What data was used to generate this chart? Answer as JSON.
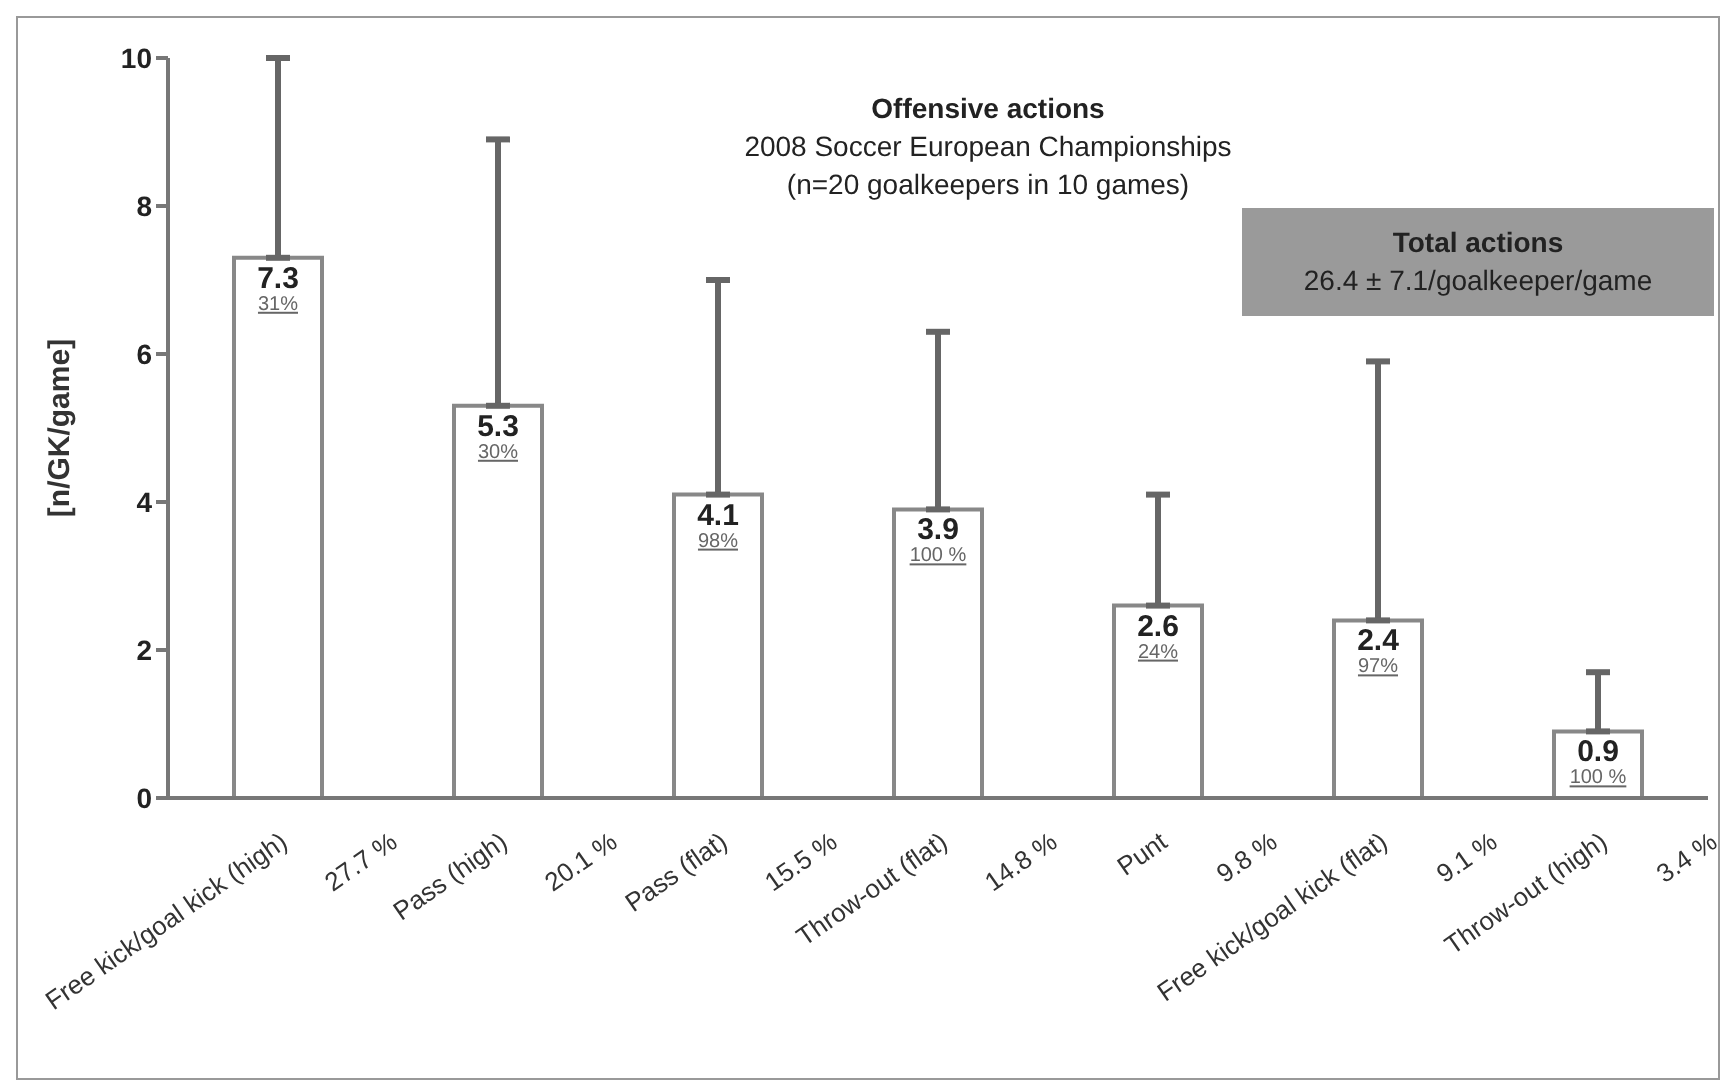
{
  "chart_data": {
    "type": "bar",
    "title": "Offensive actions",
    "subtitle": "2008 Soccer European Championships\n(n=20 goalkeepers in 10 games)",
    "ylabel": "[n/GK/game]",
    "categories": [
      "Free kick/goal kick (high)",
      "Pass (high)",
      "Pass (flat)",
      "Throw-out (flat)",
      "Punt",
      "Free kick/goal kick (flat)",
      "Throw-out (high)"
    ],
    "values": [
      7.3,
      5.3,
      4.1,
      3.9,
      2.6,
      2.4,
      0.9
    ],
    "errors": [
      [
        7.3,
        10
      ],
      [
        5.3,
        8.9
      ],
      [
        4.1,
        7.0
      ],
      [
        3.9,
        6.3
      ],
      [
        2.6,
        4.1
      ],
      [
        2.4,
        5.9
      ],
      [
        0.9,
        1.7
      ]
    ],
    "color": "#ffffff",
    "data_labels": true,
    "ylim": [
      0,
      10
    ],
    "yticks": [
      0,
      2,
      4,
      6,
      8,
      10
    ],
    "grid": false,
    "legend": false,
    "annotations": [
      "Total actions",
      "26.4 ± 7.1/goalkeeper/game",
      {
        "text": "31%",
        "x": "Free kick/goal kick (high)",
        "y": 7.3
      },
      {
        "text": "30%",
        "x": "Pass (high)",
        "y": 5.3
      },
      {
        "text": "98%",
        "x": "Pass (flat)",
        "y": 4.1
      },
      {
        "text": "100 %",
        "x": "Throw-out (flat)",
        "y": 3.9
      },
      {
        "text": "24%",
        "x": "Punt",
        "y": 2.6
      },
      {
        "text": "97%",
        "x": "Free kick/goal kick (flat)",
        "y": 2.4
      },
      {
        "text": "100 %",
        "x": "Throw-out (high)",
        "y": 0.9
      },
      "27.7 %",
      "20.1 %",
      "15.5 %",
      "14.8 %",
      "9.8 %",
      "9.1 %",
      "3.4 %"
    ]
  }
}
